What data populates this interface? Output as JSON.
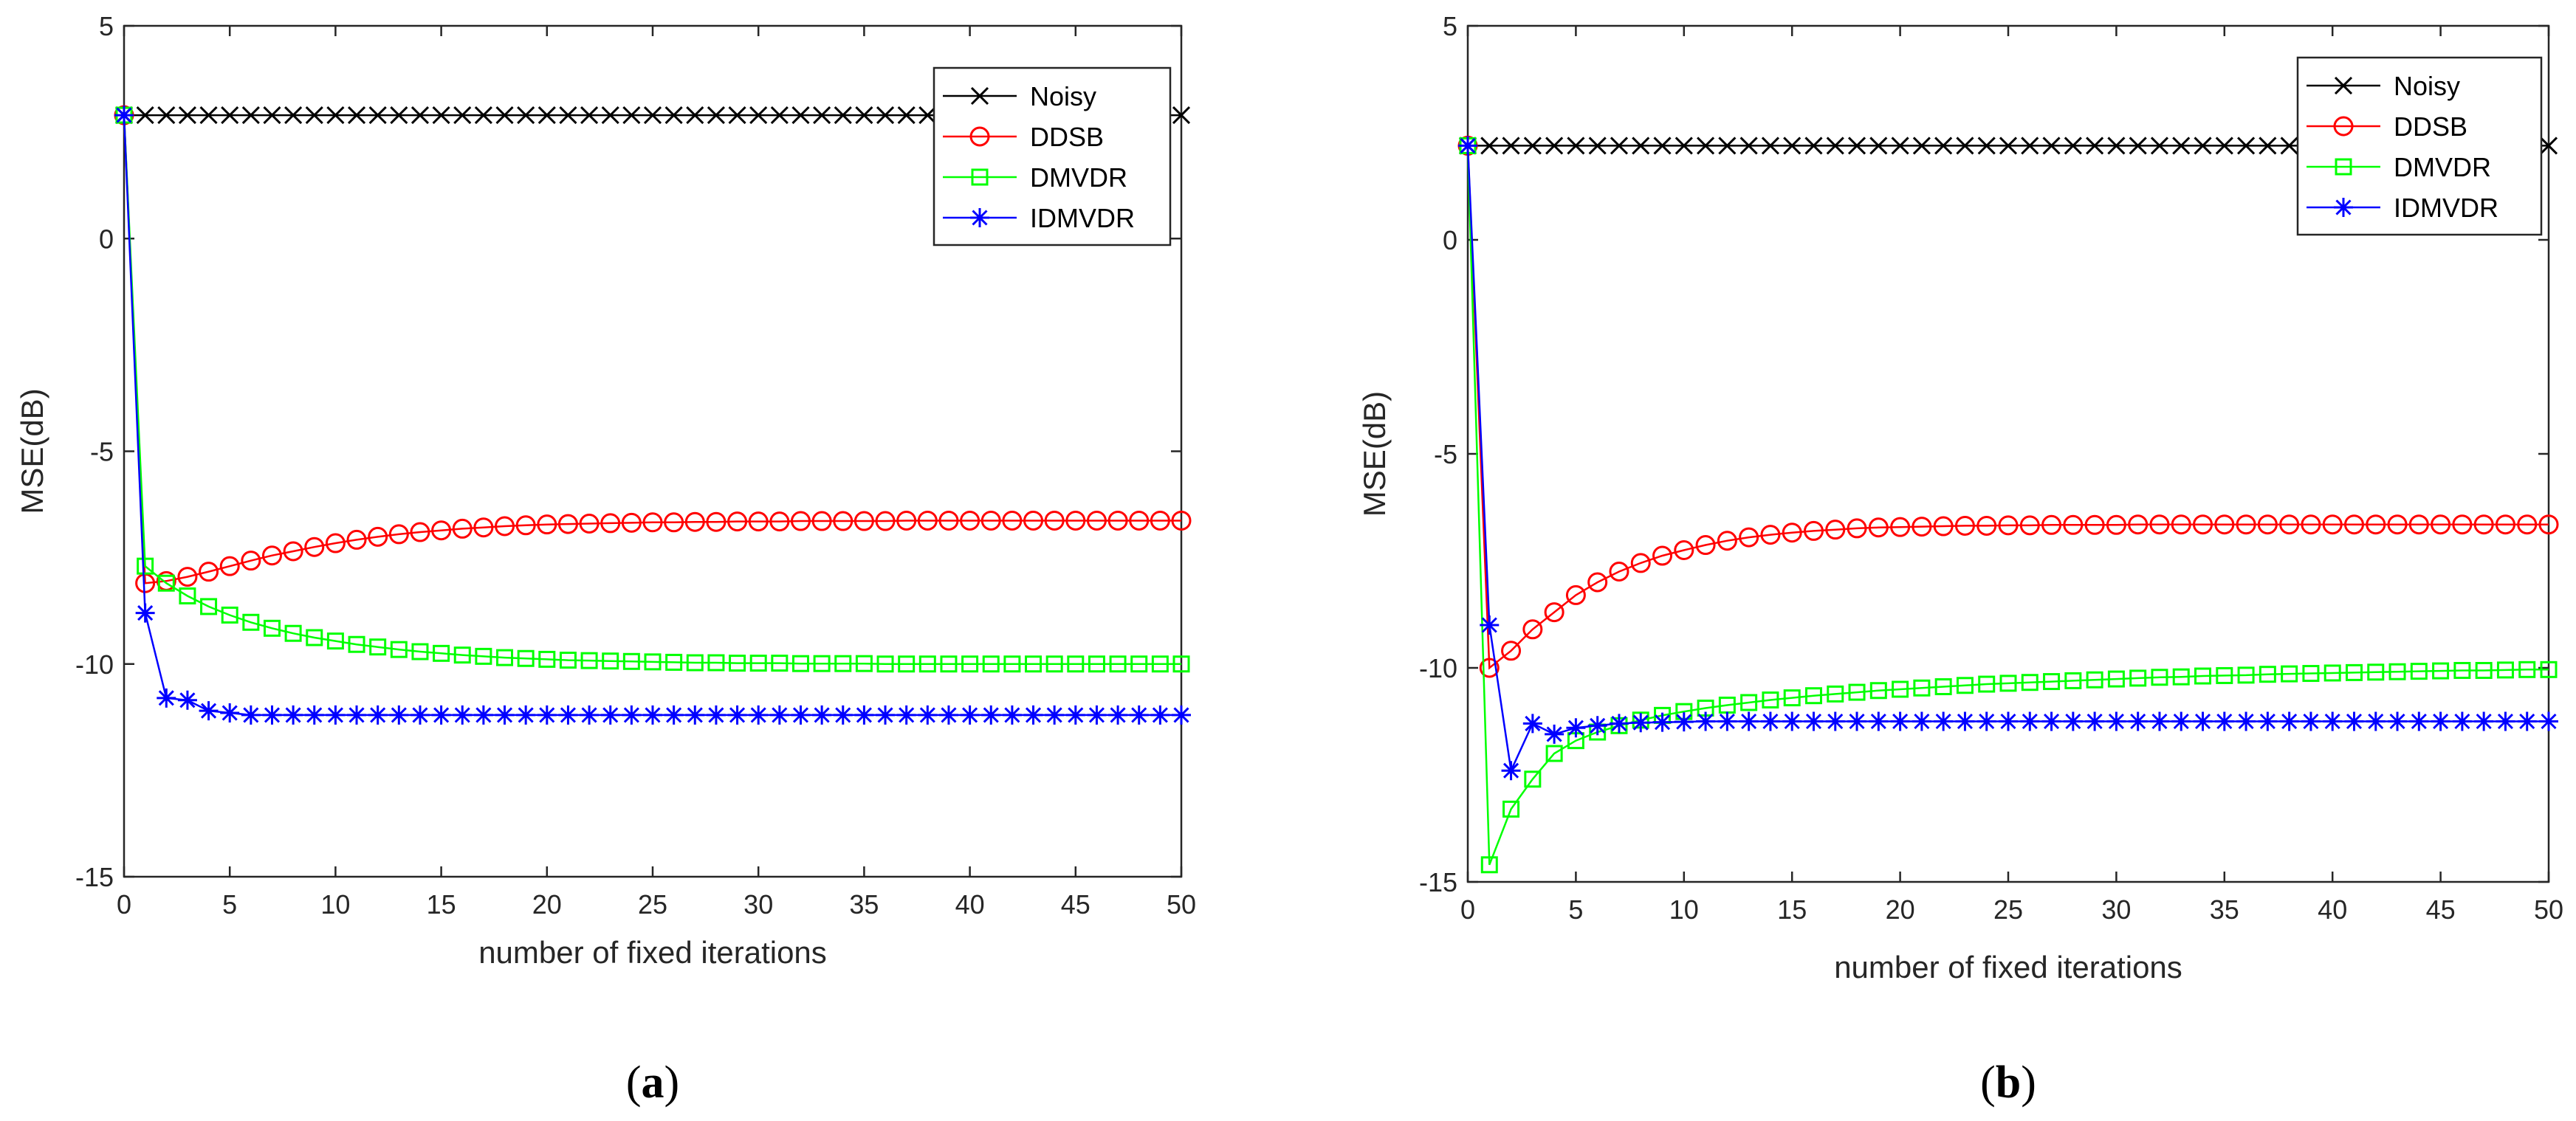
{
  "chart_data": [
    {
      "type": "line",
      "panel_label_open": "(",
      "panel_label_letter": "a",
      "panel_label_close": ")",
      "xlabel": "number of fixed iterations",
      "ylabel": "MSE(dB)",
      "xlim": [
        0,
        50
      ],
      "ylim": [
        -15,
        5
      ],
      "xticks": [
        0,
        5,
        10,
        15,
        20,
        25,
        30,
        35,
        40,
        45,
        50
      ],
      "yticks": [
        -15,
        -10,
        -5,
        0,
        5
      ],
      "legend_position": "top-right",
      "x": [
        0,
        1,
        2,
        3,
        4,
        5,
        6,
        7,
        8,
        9,
        10,
        11,
        12,
        13,
        14,
        15,
        16,
        17,
        18,
        19,
        20,
        21,
        22,
        23,
        24,
        25,
        26,
        27,
        28,
        29,
        30,
        31,
        32,
        33,
        34,
        35,
        36,
        37,
        38,
        39,
        40,
        41,
        42,
        43,
        44,
        45,
        46,
        47,
        48,
        49,
        50
      ],
      "series": [
        {
          "name": "Noisy",
          "color": "#000000",
          "marker": "x",
          "values": [
            2.9,
            2.9,
            2.9,
            2.9,
            2.9,
            2.9,
            2.9,
            2.9,
            2.9,
            2.9,
            2.9,
            2.9,
            2.9,
            2.9,
            2.9,
            2.9,
            2.9,
            2.9,
            2.9,
            2.9,
            2.9,
            2.9,
            2.9,
            2.9,
            2.9,
            2.9,
            2.9,
            2.9,
            2.9,
            2.9,
            2.9,
            2.9,
            2.9,
            2.9,
            2.9,
            2.9,
            2.9,
            2.9,
            2.9,
            2.9,
            2.9,
            2.9,
            2.9,
            2.9,
            2.9,
            2.9,
            2.9,
            2.9,
            2.9,
            2.9,
            2.9
          ]
        },
        {
          "name": "DDSB",
          "color": "#ff0000",
          "marker": "o",
          "values": [
            2.9,
            -8.1,
            -8.05,
            -7.95,
            -7.83,
            -7.7,
            -7.57,
            -7.45,
            -7.35,
            -7.25,
            -7.16,
            -7.08,
            -7.01,
            -6.95,
            -6.9,
            -6.86,
            -6.82,
            -6.79,
            -6.76,
            -6.74,
            -6.72,
            -6.71,
            -6.7,
            -6.69,
            -6.68,
            -6.67,
            -6.67,
            -6.66,
            -6.66,
            -6.65,
            -6.65,
            -6.65,
            -6.64,
            -6.64,
            -6.64,
            -6.64,
            -6.64,
            -6.63,
            -6.63,
            -6.63,
            -6.63,
            -6.63,
            -6.63,
            -6.63,
            -6.63,
            -6.63,
            -6.63,
            -6.63,
            -6.63,
            -6.63,
            -6.63
          ]
        },
        {
          "name": "DMVDR",
          "color": "#00ff00",
          "marker": "s",
          "values": [
            2.9,
            -7.7,
            -8.1,
            -8.4,
            -8.65,
            -8.85,
            -9.02,
            -9.16,
            -9.28,
            -9.38,
            -9.46,
            -9.54,
            -9.6,
            -9.66,
            -9.71,
            -9.75,
            -9.79,
            -9.82,
            -9.85,
            -9.87,
            -9.89,
            -9.91,
            -9.92,
            -9.93,
            -9.94,
            -9.95,
            -9.96,
            -9.97,
            -9.97,
            -9.98,
            -9.98,
            -9.98,
            -9.99,
            -9.99,
            -9.99,
            -9.99,
            -10.0,
            -10.0,
            -10.0,
            -10.0,
            -10.0,
            -10.0,
            -10.0,
            -10.0,
            -10.0,
            -10.0,
            -10.0,
            -10.0,
            -10.0,
            -10.0,
            -10.0
          ]
        },
        {
          "name": "IDMVDR",
          "color": "#0000ff",
          "marker": "*",
          "values": [
            2.9,
            -8.8,
            -10.8,
            -10.85,
            -11.1,
            -11.15,
            -11.2,
            -11.2,
            -11.2,
            -11.2,
            -11.2,
            -11.2,
            -11.2,
            -11.2,
            -11.2,
            -11.2,
            -11.2,
            -11.2,
            -11.2,
            -11.2,
            -11.2,
            -11.2,
            -11.2,
            -11.2,
            -11.2,
            -11.2,
            -11.2,
            -11.2,
            -11.2,
            -11.2,
            -11.2,
            -11.2,
            -11.2,
            -11.2,
            -11.2,
            -11.2,
            -11.2,
            -11.2,
            -11.2,
            -11.2,
            -11.2,
            -11.2,
            -11.2,
            -11.2,
            -11.2,
            -11.2,
            -11.2,
            -11.2,
            -11.2,
            -11.2,
            -11.2
          ]
        }
      ]
    },
    {
      "type": "line",
      "panel_label_open": "(",
      "panel_label_letter": "b",
      "panel_label_close": ")",
      "xlabel": "number of fixed iterations",
      "ylabel": "MSE(dB)",
      "xlim": [
        0,
        50
      ],
      "ylim": [
        -15,
        5
      ],
      "xticks": [
        0,
        5,
        10,
        15,
        20,
        25,
        30,
        35,
        40,
        45,
        50
      ],
      "yticks": [
        -15,
        -10,
        -5,
        0,
        5
      ],
      "legend_position": "top-right",
      "x": [
        0,
        1,
        2,
        3,
        4,
        5,
        6,
        7,
        8,
        9,
        10,
        11,
        12,
        13,
        14,
        15,
        16,
        17,
        18,
        19,
        20,
        21,
        22,
        23,
        24,
        25,
        26,
        27,
        28,
        29,
        30,
        31,
        32,
        33,
        34,
        35,
        36,
        37,
        38,
        39,
        40,
        41,
        42,
        43,
        44,
        45,
        46,
        47,
        48,
        49,
        50
      ],
      "series": [
        {
          "name": "Noisy",
          "color": "#000000",
          "marker": "x",
          "values": [
            2.2,
            2.2,
            2.2,
            2.2,
            2.2,
            2.2,
            2.2,
            2.2,
            2.2,
            2.2,
            2.2,
            2.2,
            2.2,
            2.2,
            2.2,
            2.2,
            2.2,
            2.2,
            2.2,
            2.2,
            2.2,
            2.2,
            2.2,
            2.2,
            2.2,
            2.2,
            2.2,
            2.2,
            2.2,
            2.2,
            2.2,
            2.2,
            2.2,
            2.2,
            2.2,
            2.2,
            2.2,
            2.2,
            2.2,
            2.2,
            2.2,
            2.2,
            2.2,
            2.2,
            2.2,
            2.2,
            2.2,
            2.2,
            2.2,
            2.2,
            2.2
          ]
        },
        {
          "name": "DDSB",
          "color": "#ff0000",
          "marker": "o",
          "values": [
            2.2,
            -10.0,
            -9.6,
            -9.1,
            -8.7,
            -8.3,
            -8.0,
            -7.75,
            -7.55,
            -7.38,
            -7.25,
            -7.13,
            -7.03,
            -6.95,
            -6.89,
            -6.84,
            -6.8,
            -6.77,
            -6.74,
            -6.72,
            -6.71,
            -6.7,
            -6.69,
            -6.68,
            -6.68,
            -6.67,
            -6.67,
            -6.66,
            -6.66,
            -6.66,
            -6.66,
            -6.65,
            -6.65,
            -6.65,
            -6.65,
            -6.65,
            -6.65,
            -6.65,
            -6.65,
            -6.65,
            -6.65,
            -6.65,
            -6.65,
            -6.65,
            -6.65,
            -6.65,
            -6.65,
            -6.65,
            -6.65,
            -6.65,
            -6.65
          ]
        },
        {
          "name": "DMVDR",
          "color": "#00ff00",
          "marker": "s",
          "values": [
            2.2,
            -14.6,
            -13.3,
            -12.6,
            -12.0,
            -11.7,
            -11.5,
            -11.35,
            -11.22,
            -11.11,
            -11.02,
            -10.94,
            -10.87,
            -10.81,
            -10.75,
            -10.7,
            -10.65,
            -10.61,
            -10.57,
            -10.53,
            -10.5,
            -10.47,
            -10.44,
            -10.41,
            -10.38,
            -10.36,
            -10.34,
            -10.32,
            -10.3,
            -10.28,
            -10.26,
            -10.24,
            -10.22,
            -10.21,
            -10.19,
            -10.18,
            -10.17,
            -10.15,
            -10.14,
            -10.13,
            -10.12,
            -10.11,
            -10.1,
            -10.09,
            -10.08,
            -10.07,
            -10.06,
            -10.06,
            -10.05,
            -10.04,
            -10.04
          ]
        },
        {
          "name": "IDMVDR",
          "color": "#0000ff",
          "marker": "*",
          "values": [
            2.2,
            -9.0,
            -12.4,
            -11.3,
            -11.55,
            -11.4,
            -11.35,
            -11.3,
            -11.28,
            -11.27,
            -11.26,
            -11.25,
            -11.25,
            -11.25,
            -11.25,
            -11.25,
            -11.25,
            -11.25,
            -11.25,
            -11.25,
            -11.25,
            -11.25,
            -11.25,
            -11.25,
            -11.25,
            -11.25,
            -11.25,
            -11.25,
            -11.25,
            -11.25,
            -11.25,
            -11.25,
            -11.25,
            -11.25,
            -11.25,
            -11.25,
            -11.25,
            -11.25,
            -11.25,
            -11.25,
            -11.25,
            -11.25,
            -11.25,
            -11.25,
            -11.25,
            -11.25,
            -11.25,
            -11.25,
            -11.25,
            -11.25,
            -11.25
          ]
        }
      ]
    }
  ]
}
